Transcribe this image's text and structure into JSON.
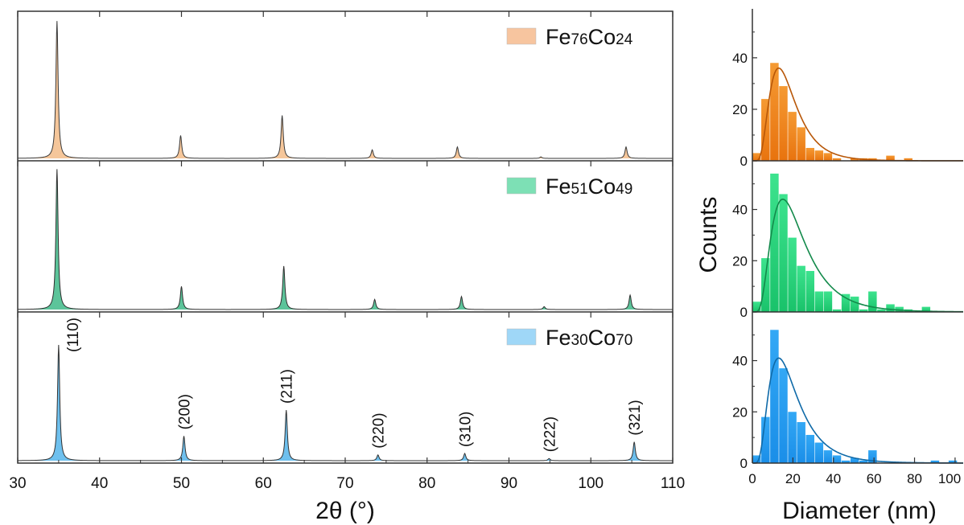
{
  "chart_data": [
    {
      "type": "line",
      "panels": [
        {
          "legend": {
            "prefix_a": "Fe",
            "sub_a": "76",
            "prefix_b": "Co",
            "sub_b": "24"
          },
          "fill": "#f5c69a",
          "stroke": "#3a3a3a",
          "patch": "#f7c59f",
          "peaks": [
            {
              "x": 34.8,
              "h": 0.96
            },
            {
              "x": 49.9,
              "h": 0.16
            },
            {
              "x": 62.3,
              "h": 0.3
            },
            {
              "x": 73.3,
              "h": 0.06
            },
            {
              "x": 83.7,
              "h": 0.08
            },
            {
              "x": 93.9,
              "h": 0.01
            },
            {
              "x": 104.3,
              "h": 0.08
            }
          ]
        },
        {
          "legend": {
            "prefix_a": "Fe",
            "sub_a": "51",
            "prefix_b": "Co",
            "sub_b": "49"
          },
          "fill": "#5cc49a",
          "stroke": "#2f2f2f",
          "patch": "#7de0b5",
          "peaks": [
            {
              "x": 34.8,
              "h": 0.97
            },
            {
              "x": 50.0,
              "h": 0.16
            },
            {
              "x": 62.5,
              "h": 0.3
            },
            {
              "x": 73.6,
              "h": 0.07
            },
            {
              "x": 84.2,
              "h": 0.09
            },
            {
              "x": 94.3,
              "h": 0.02
            },
            {
              "x": 104.8,
              "h": 0.1
            }
          ]
        },
        {
          "legend": {
            "prefix_a": "Fe",
            "sub_a": "30",
            "prefix_b": "Co",
            "sub_b": "70"
          },
          "fill": "#6ec0ee",
          "stroke": "#333333",
          "patch": "#9fd7f7",
          "peaks": [
            {
              "x": 35.0,
              "h": 0.8
            },
            {
              "x": 50.3,
              "h": 0.17
            },
            {
              "x": 62.8,
              "h": 0.35
            },
            {
              "x": 74.0,
              "h": 0.04
            },
            {
              "x": 84.6,
              "h": 0.05
            },
            {
              "x": 94.9,
              "h": 0.015
            },
            {
              "x": 105.3,
              "h": 0.13
            }
          ]
        }
      ],
      "peak_labels": [
        {
          "x": 35.0,
          "text": "(110)"
        },
        {
          "x": 50.3,
          "text": "(200)"
        },
        {
          "x": 62.8,
          "text": "(211)"
        },
        {
          "x": 74.0,
          "text": "(220)"
        },
        {
          "x": 84.6,
          "text": "(310)"
        },
        {
          "x": 94.9,
          "text": "(222)"
        },
        {
          "x": 105.3,
          "text": "(321)"
        }
      ],
      "x_ticks": [
        30,
        40,
        50,
        60,
        70,
        80,
        90,
        100,
        110
      ],
      "xlim": [
        30,
        110
      ],
      "xlabel": "2θ (°)"
    },
    {
      "type": "bar",
      "bin_edges": [
        0,
        4.4,
        8.8,
        13.2,
        17.6,
        22,
        26.4,
        30.8,
        35.2,
        39.6,
        44,
        48.4,
        52.8,
        57.2,
        61.6,
        66,
        70.4,
        74.8,
        79.2,
        83.6,
        88,
        92.4,
        96.8,
        101.2
      ],
      "panels": [
        {
          "color": "#e8730e",
          "gradient_top": "#f59a33",
          "curve": "#b85708",
          "counts": [
            3,
            24,
            38,
            29,
            19,
            13,
            5,
            4,
            3,
            1,
            0,
            1,
            1,
            1,
            0,
            2,
            0,
            1,
            0,
            0,
            0,
            0,
            0
          ],
          "fit": {
            "amp": 36,
            "mode": 13,
            "sigma": 0.5
          }
        },
        {
          "color": "#19c26a",
          "gradient_top": "#3de38e",
          "curve": "#138a4b",
          "counts": [
            4,
            21,
            54,
            46,
            29,
            18,
            16,
            8,
            8,
            1,
            7,
            6,
            1,
            8,
            1,
            3,
            2,
            1,
            0,
            2,
            0,
            0,
            0
          ],
          "fit": {
            "amp": 44,
            "mode": 15,
            "sigma": 0.55
          }
        },
        {
          "color": "#1a8ee8",
          "gradient_top": "#33a8f5",
          "curve": "#0f6aa8",
          "counts": [
            3,
            18,
            52,
            37,
            20,
            16,
            11,
            8,
            5,
            3,
            1,
            2,
            1,
            5,
            0,
            0,
            0,
            0,
            0,
            0,
            1,
            0,
            1
          ],
          "fit": {
            "amp": 41,
            "mode": 13,
            "sigma": 0.55
          }
        }
      ],
      "y_ticks": [
        0,
        20,
        40
      ],
      "x_ticks": [
        0,
        20,
        40,
        60,
        80,
        100
      ],
      "xlim": [
        0,
        104
      ],
      "ylim": [
        0,
        59
      ],
      "xlabel": "Diameter (nm)",
      "ylabel": "Counts"
    }
  ]
}
